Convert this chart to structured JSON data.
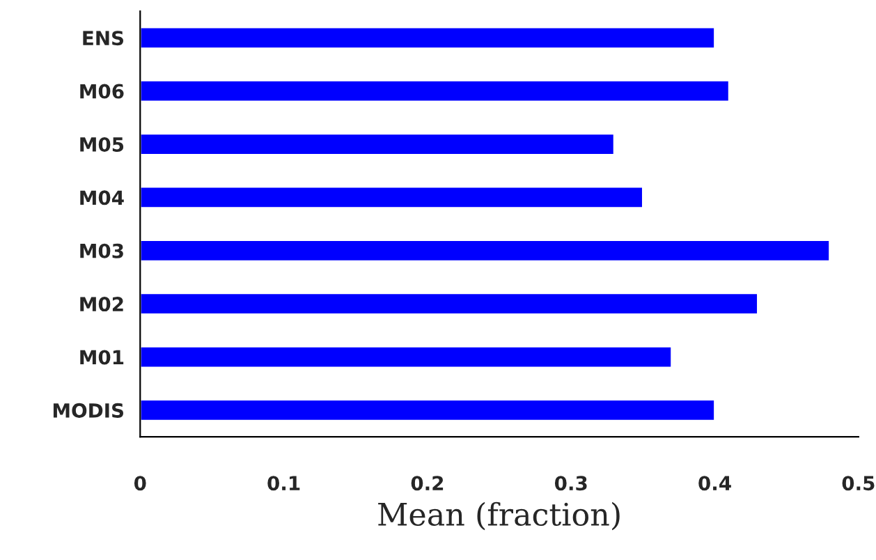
{
  "chart_data": {
    "type": "bar",
    "orientation": "horizontal",
    "xlabel": "Mean (fraction)",
    "categories": [
      "ENS",
      "M06",
      "M05",
      "M04",
      "M03",
      "M02",
      "M01",
      "MODIS"
    ],
    "values": [
      0.4,
      0.41,
      0.33,
      0.35,
      0.48,
      0.43,
      0.37,
      0.4
    ],
    "color": "#0000ff",
    "xlim": [
      0,
      0.5
    ],
    "xticks": [
      0,
      0.1,
      0.2,
      0.3,
      0.4,
      0.5
    ],
    "grid": false
  }
}
